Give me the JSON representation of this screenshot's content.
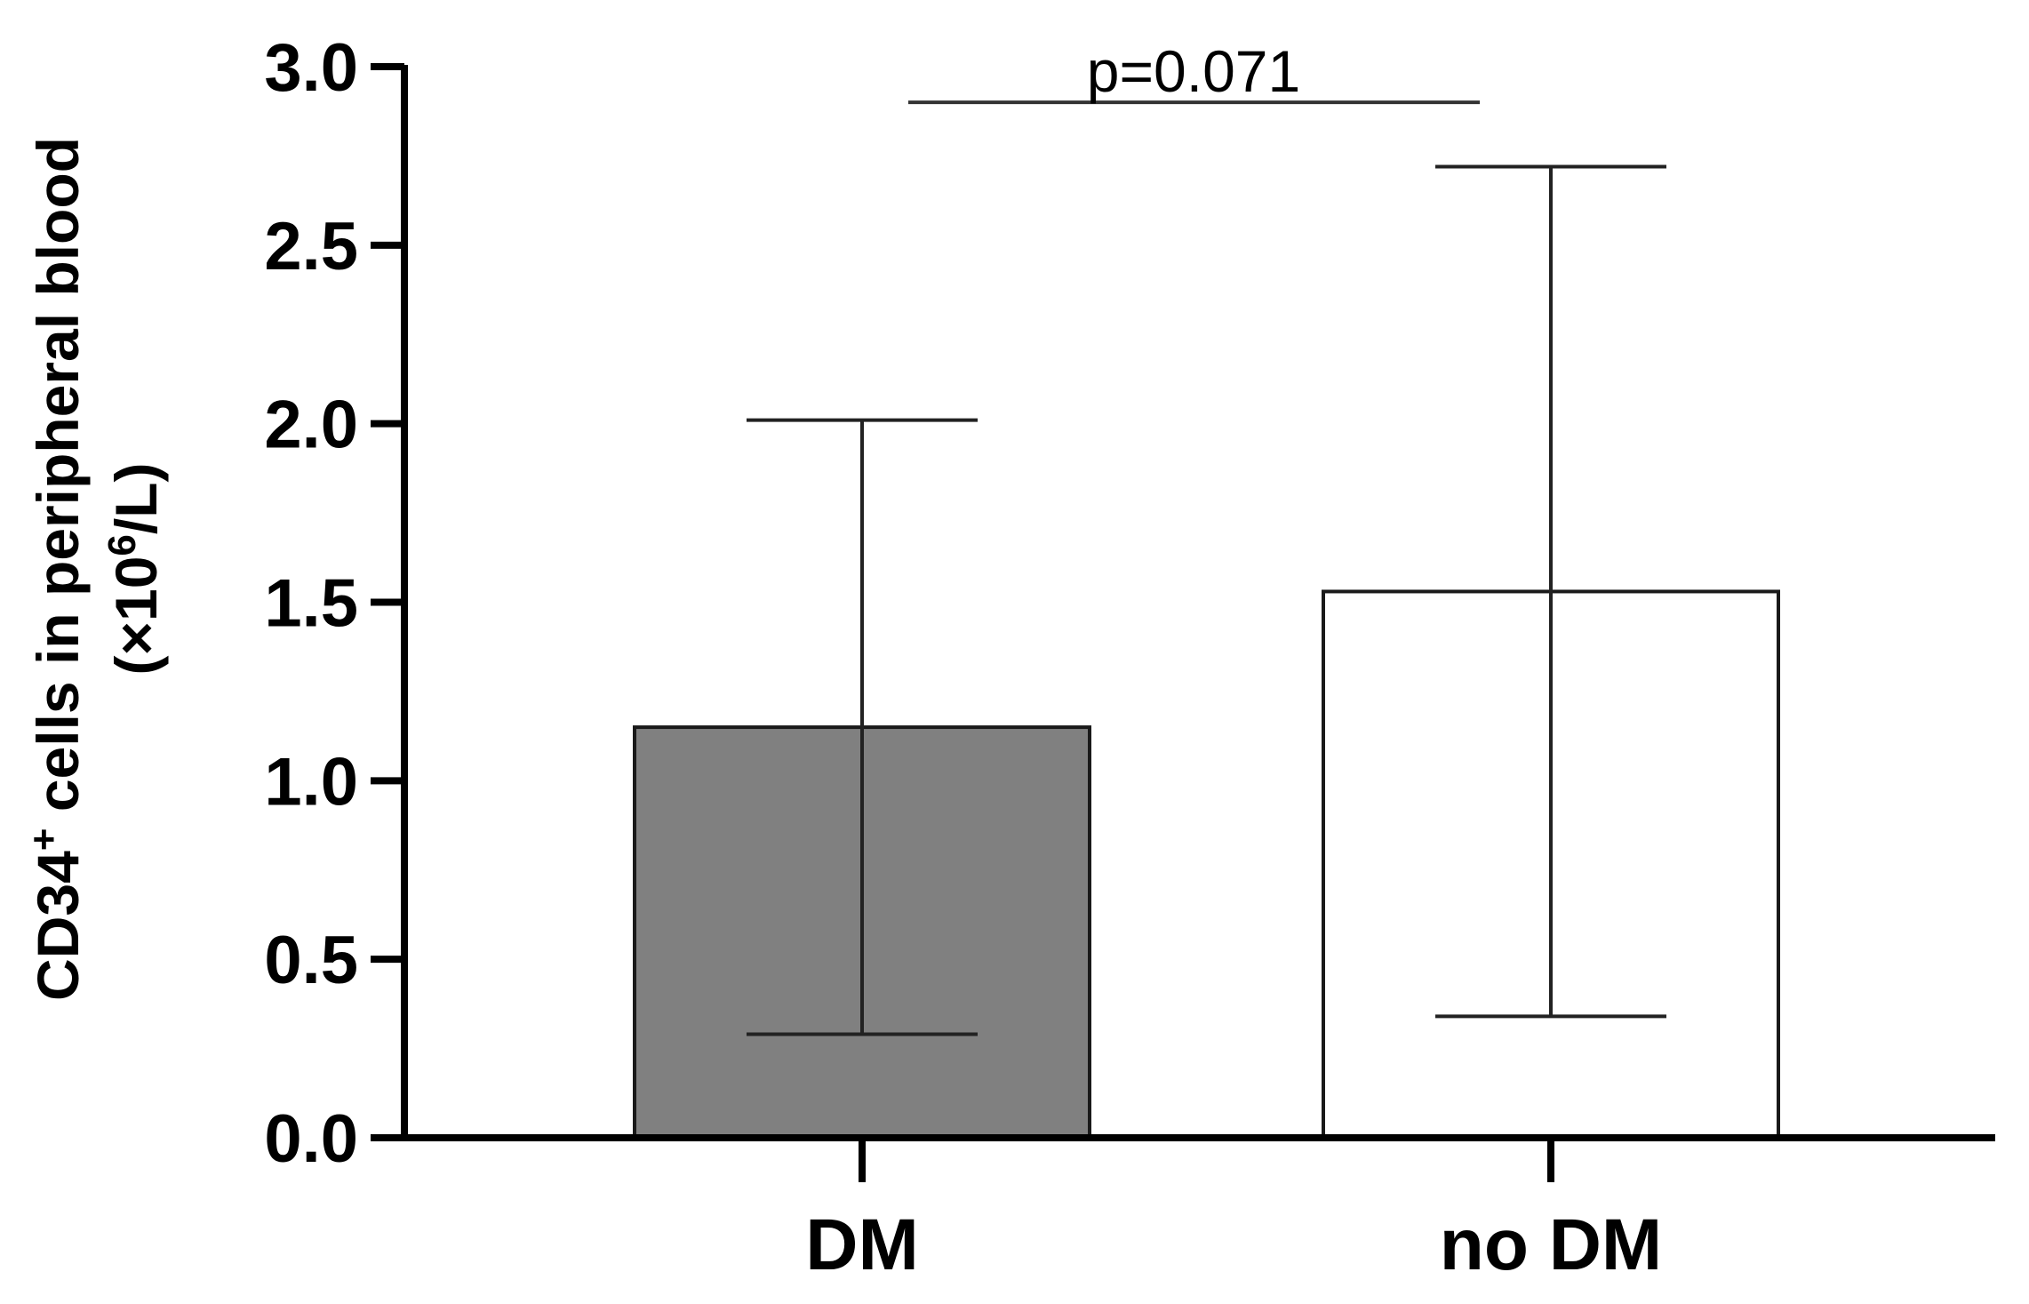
{
  "chart_data": {
    "type": "bar",
    "categories": [
      "DM",
      "no DM"
    ],
    "values": [
      1.15,
      1.53
    ],
    "error_upper": [
      2.01,
      2.72
    ],
    "error_lower": [
      0.29,
      0.34
    ],
    "bar_colors": [
      "#808080",
      "#ffffff"
    ],
    "ylabel_line1_prefix": "CD34",
    "ylabel_line1_sup": "+",
    "ylabel_line1_suffix": " cells in peripheral blood",
    "ylabel_line2_prefix": "(×10",
    "ylabel_line2_sup": "6",
    "ylabel_line2_suffix": "/L)",
    "ylim": [
      0,
      3.0
    ],
    "yticks": [
      "0.0",
      "0.5",
      "1.0",
      "1.5",
      "2.0",
      "2.5",
      "3.0"
    ],
    "annotation": {
      "text": "p=0.071",
      "y": 2.9
    },
    "grid": false,
    "legend": "none"
  }
}
